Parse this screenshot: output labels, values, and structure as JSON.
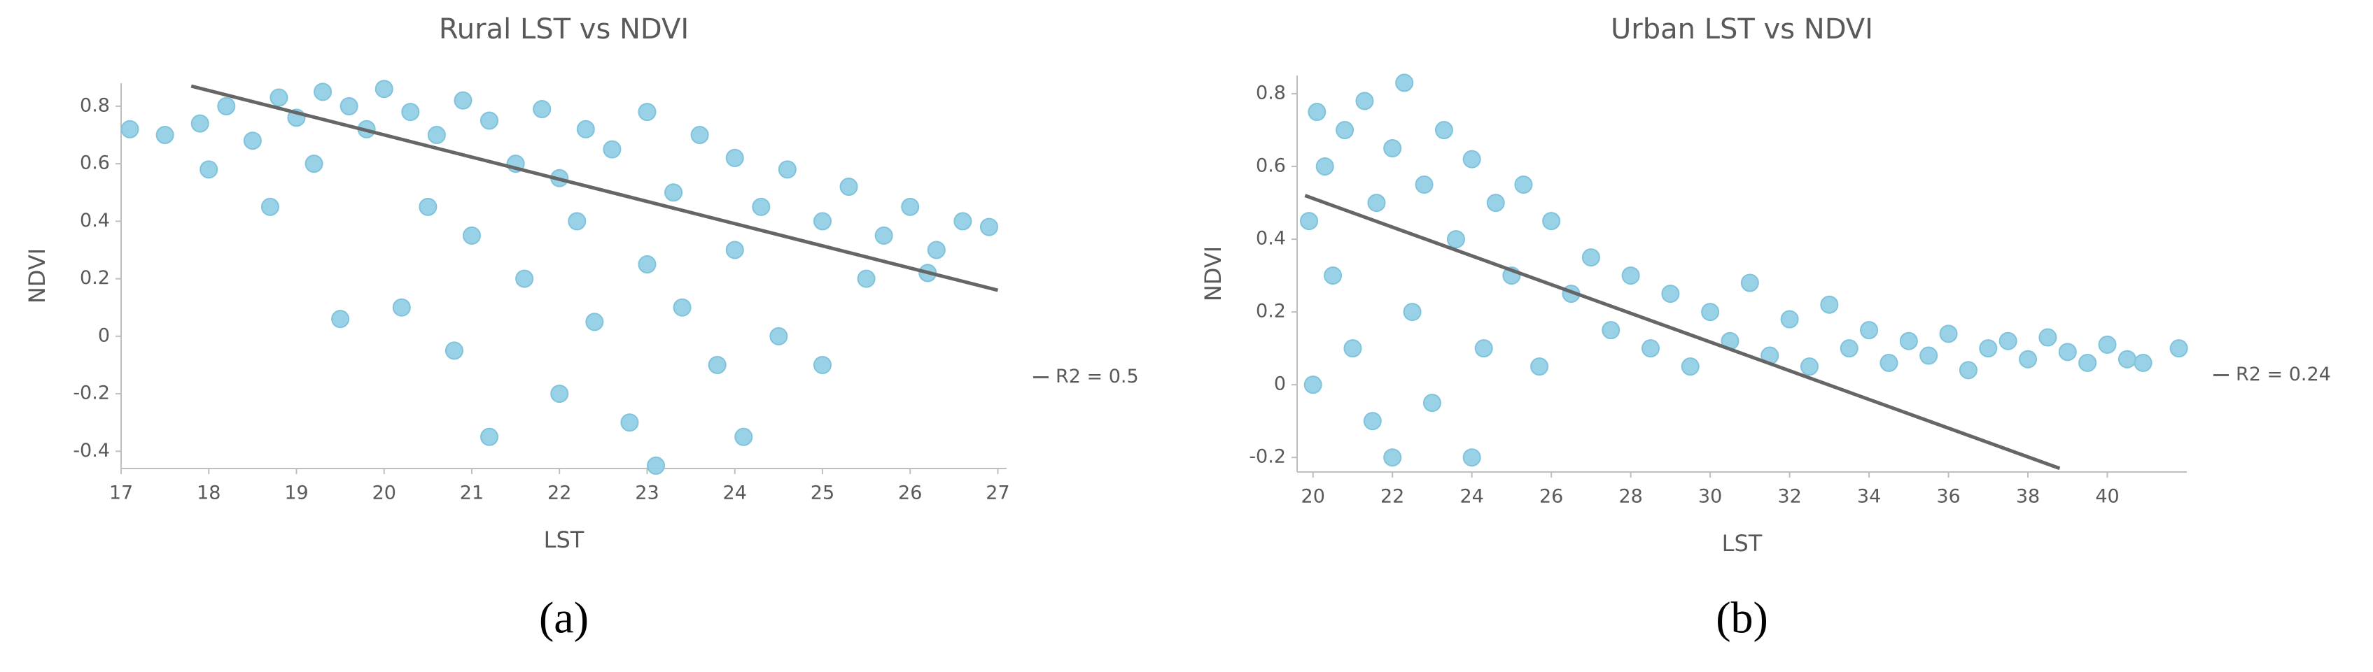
{
  "chart_data": [
    {
      "type": "scatter",
      "title": "Rural LST vs NDVI",
      "x_label": "LST",
      "y_label": "NDVI",
      "caption": "(a)",
      "color": "#93cfe5",
      "xlim": [
        17,
        27.1
      ],
      "ylim": [
        -0.46,
        0.88
      ],
      "xticks": [
        17,
        18,
        19,
        20,
        21,
        22,
        23,
        24,
        25,
        26,
        27
      ],
      "yticks": [
        -0.4,
        -0.2,
        0,
        0.2,
        0.4,
        0.6,
        0.8
      ],
      "x": [
        17.1,
        17.5,
        17.9,
        18.2,
        18.5,
        18.8,
        19.0,
        19.3,
        19.6,
        19.8,
        20.0,
        20.3,
        20.6,
        20.9,
        21.2,
        21.5,
        21.8,
        22.0,
        22.3,
        22.6,
        23.0,
        23.3,
        23.6,
        24.0,
        24.3,
        24.6,
        25.0,
        25.3,
        25.7,
        26.0,
        26.3,
        26.6,
        26.9,
        18.0,
        18.7,
        19.5,
        20.2,
        20.8,
        21.2,
        21.6,
        22.0,
        22.4,
        22.8,
        23.1,
        23.4,
        23.8,
        24.1,
        24.5,
        25.0,
        21.0,
        22.2,
        23.0,
        24.0,
        25.5,
        26.2,
        19.2,
        20.5
      ],
      "values": [
        0.72,
        0.7,
        0.74,
        0.8,
        0.68,
        0.83,
        0.76,
        0.85,
        0.8,
        0.72,
        0.86,
        0.78,
        0.7,
        0.82,
        0.75,
        0.6,
        0.79,
        0.55,
        0.72,
        0.65,
        0.78,
        0.5,
        0.7,
        0.62,
        0.45,
        0.58,
        0.4,
        0.52,
        0.35,
        0.45,
        0.3,
        0.4,
        0.38,
        0.58,
        0.45,
        0.06,
        0.1,
        -0.05,
        -0.35,
        0.2,
        -0.2,
        0.05,
        -0.3,
        -0.45,
        0.1,
        -0.1,
        -0.35,
        0.0,
        -0.1,
        0.35,
        0.4,
        0.25,
        0.3,
        0.2,
        0.22,
        0.6,
        0.45
      ],
      "trendline": {
        "color": "#666666",
        "x": [
          17.8,
          27
        ],
        "values": [
          0.87,
          0.16
        ],
        "label": "R2 = 0.5"
      }
    },
    {
      "type": "scatter",
      "title": "Urban LST vs NDVI",
      "x_label": "LST",
      "y_label": "NDVI",
      "caption": "(b)",
      "color": "#93cfe5",
      "xlim": [
        19.6,
        42
      ],
      "ylim": [
        -0.24,
        0.85
      ],
      "xticks": [
        20,
        22,
        24,
        26,
        28,
        30,
        32,
        34,
        36,
        38,
        40
      ],
      "yticks": [
        -0.2,
        0,
        0.2,
        0.4,
        0.6,
        0.8
      ],
      "x": [
        19.9,
        20.1,
        20.3,
        20.5,
        20.8,
        21.0,
        21.3,
        21.6,
        22.0,
        22.3,
        22.5,
        22.8,
        23.0,
        23.3,
        23.6,
        24.0,
        24.3,
        24.6,
        25.0,
        25.3,
        25.7,
        26.0,
        26.5,
        27.0,
        27.5,
        28.0,
        28.5,
        29.0,
        29.5,
        30.0,
        30.5,
        31.0,
        31.5,
        32.0,
        32.5,
        33.0,
        33.5,
        34.0,
        34.5,
        35.0,
        35.5,
        36.0,
        36.5,
        37.0,
        37.5,
        38.0,
        38.5,
        39.0,
        39.5,
        40.0,
        40.5,
        40.9,
        41.8,
        22.0,
        24.0,
        21.5,
        20.0
      ],
      "values": [
        0.45,
        0.75,
        0.6,
        0.3,
        0.7,
        0.1,
        0.78,
        0.5,
        0.65,
        0.83,
        0.2,
        0.55,
        -0.05,
        0.7,
        0.4,
        0.62,
        0.1,
        0.5,
        0.3,
        0.55,
        0.05,
        0.45,
        0.25,
        0.35,
        0.15,
        0.3,
        0.1,
        0.25,
        0.05,
        0.2,
        0.12,
        0.28,
        0.08,
        0.18,
        0.05,
        0.22,
        0.1,
        0.15,
        0.06,
        0.12,
        0.08,
        0.14,
        0.04,
        0.1,
        0.12,
        0.07,
        0.13,
        0.09,
        0.06,
        0.11,
        0.07,
        0.06,
        0.1,
        -0.2,
        -0.2,
        -0.1,
        0.0
      ],
      "trendline": {
        "color": "#666666",
        "x": [
          19.8,
          38.8
        ],
        "values": [
          0.52,
          -0.23
        ],
        "label": "R2 = 0.24"
      }
    }
  ]
}
